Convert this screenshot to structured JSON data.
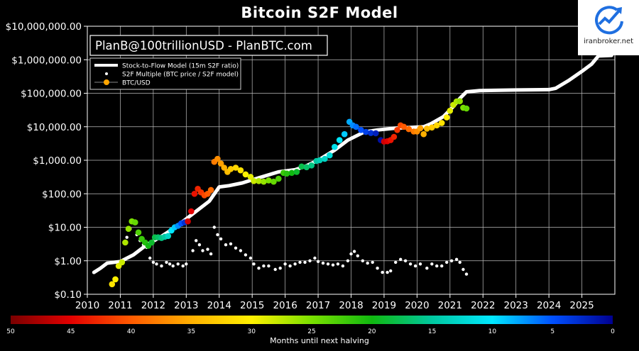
{
  "watermark": {
    "text": "iranbroker.net"
  },
  "chart_data": {
    "type": "scatter",
    "title": "Bitcoin S2F Model",
    "annotation": "PlanB@100trillionUSD - PlanBTC.com",
    "y_scale": "log",
    "ylim": [
      0.1,
      10000000
    ],
    "xlim": [
      2010,
      2026
    ],
    "y_ticks": [
      "$0.10",
      "$1.00",
      "$10.00",
      "$100.00",
      "$1,000.00",
      "$10,000.00",
      "$100,000.00",
      "$1,000,000.00",
      "$10,000,000.00"
    ],
    "x_ticks": [
      "2010",
      "2011",
      "2012",
      "2013",
      "2014",
      "2015",
      "2016",
      "2017",
      "2018",
      "2019",
      "2020",
      "2021",
      "2022",
      "2023",
      "2024",
      "2025"
    ],
    "grid": true,
    "background": "#000000",
    "legend": {
      "placement": "top-left",
      "entries": [
        "Stock-to-Flow Model (15m S2F ratio)",
        "S2F Multiple (BTC price / S2F model)",
        "BTC/USD"
      ]
    },
    "colorbar": {
      "label": "Months until next halving",
      "ticks": [
        "50",
        "45",
        "40",
        "35",
        "30",
        "25",
        "20",
        "15",
        "10",
        "5",
        "0"
      ],
      "range": [
        50,
        0
      ],
      "colors": [
        "#7a0000",
        "#e30000",
        "#ff5a00",
        "#ffb000",
        "#fff000",
        "#7ae000",
        "#10b810",
        "#00c8a0",
        "#00e8ff",
        "#0050ff",
        "#000090"
      ]
    },
    "series": [
      {
        "name": "Stock-to-Flow Model (15m S2F ratio)",
        "kind": "line",
        "color": "#ffffff",
        "points": [
          [
            2010.2,
            0.45
          ],
          [
            2010.4,
            0.6
          ],
          [
            2010.6,
            0.85
          ],
          [
            2011.0,
            0.95
          ],
          [
            2011.4,
            1.5
          ],
          [
            2011.8,
            3.0
          ],
          [
            2012.2,
            5.0
          ],
          [
            2012.6,
            9.0
          ],
          [
            2012.9,
            15
          ],
          [
            2013.3,
            30
          ],
          [
            2013.7,
            60
          ],
          [
            2014.0,
            160
          ],
          [
            2014.3,
            175
          ],
          [
            2014.7,
            210
          ],
          [
            2015.2,
            300
          ],
          [
            2015.8,
            450
          ],
          [
            2016.3,
            520
          ],
          [
            2016.6,
            650
          ],
          [
            2017.0,
            1000
          ],
          [
            2017.5,
            2000
          ],
          [
            2017.9,
            4000
          ],
          [
            2018.4,
            7000
          ],
          [
            2018.8,
            8000
          ],
          [
            2019.3,
            9000
          ],
          [
            2019.8,
            9500
          ],
          [
            2020.2,
            10000
          ],
          [
            2020.4,
            12000
          ],
          [
            2020.8,
            20000
          ],
          [
            2021.1,
            40000
          ],
          [
            2021.3,
            70000
          ],
          [
            2021.5,
            110000
          ],
          [
            2021.9,
            120000
          ],
          [
            2023.0,
            125000
          ],
          [
            2024.0,
            128000
          ],
          [
            2024.2,
            140000
          ],
          [
            2024.6,
            240000
          ],
          [
            2025.0,
            450000
          ],
          [
            2025.3,
            750000
          ],
          [
            2025.5,
            1300000
          ],
          [
            2025.9,
            1350000
          ]
        ]
      },
      {
        "name": "S2F Multiple (BTC price / S2F model)",
        "kind": "scatter",
        "color": "#ffffff",
        "points": [
          [
            2011.2,
            5
          ],
          [
            2011.3,
            9
          ],
          [
            2011.5,
            6
          ],
          [
            2011.6,
            4
          ],
          [
            2011.7,
            3
          ],
          [
            2011.8,
            2.5
          ],
          [
            2011.9,
            1.2
          ],
          [
            2012.0,
            0.9
          ],
          [
            2012.1,
            0.8
          ],
          [
            2012.25,
            0.7
          ],
          [
            2012.4,
            0.9
          ],
          [
            2012.5,
            0.8
          ],
          [
            2012.6,
            0.7
          ],
          [
            2012.75,
            0.8
          ],
          [
            2012.9,
            0.7
          ],
          [
            2013.0,
            0.8
          ],
          [
            2013.2,
            2
          ],
          [
            2013.3,
            4
          ],
          [
            2013.4,
            3
          ],
          [
            2013.5,
            2
          ],
          [
            2013.65,
            2.2
          ],
          [
            2013.75,
            1.6
          ],
          [
            2013.85,
            10
          ],
          [
            2013.95,
            6
          ],
          [
            2014.05,
            4.5
          ],
          [
            2014.2,
            3
          ],
          [
            2014.35,
            3.2
          ],
          [
            2014.5,
            2.4
          ],
          [
            2014.65,
            2
          ],
          [
            2014.8,
            1.5
          ],
          [
            2014.95,
            1.2
          ],
          [
            2015.05,
            0.8
          ],
          [
            2015.2,
            0.6
          ],
          [
            2015.35,
            0.7
          ],
          [
            2015.5,
            0.7
          ],
          [
            2015.7,
            0.55
          ],
          [
            2015.85,
            0.6
          ],
          [
            2016.0,
            0.8
          ],
          [
            2016.15,
            0.7
          ],
          [
            2016.3,
            0.8
          ],
          [
            2016.45,
            0.9
          ],
          [
            2016.6,
            0.9
          ],
          [
            2016.75,
            1.0
          ],
          [
            2016.9,
            1.2
          ],
          [
            2017.0,
            0.95
          ],
          [
            2017.15,
            0.85
          ],
          [
            2017.3,
            0.8
          ],
          [
            2017.45,
            0.75
          ],
          [
            2017.6,
            0.8
          ],
          [
            2017.75,
            0.7
          ],
          [
            2017.9,
            1.0
          ],
          [
            2018.0,
            1.6
          ],
          [
            2018.1,
            1.9
          ],
          [
            2018.2,
            1.4
          ],
          [
            2018.35,
            1.0
          ],
          [
            2018.5,
            0.85
          ],
          [
            2018.65,
            0.9
          ],
          [
            2018.8,
            0.6
          ],
          [
            2018.95,
            0.45
          ],
          [
            2019.1,
            0.45
          ],
          [
            2019.2,
            0.5
          ],
          [
            2019.35,
            0.9
          ],
          [
            2019.5,
            1.1
          ],
          [
            2019.65,
            1.0
          ],
          [
            2019.8,
            0.8
          ],
          [
            2019.95,
            0.7
          ],
          [
            2020.1,
            0.8
          ],
          [
            2020.3,
            0.6
          ],
          [
            2020.45,
            0.8
          ],
          [
            2020.6,
            0.7
          ],
          [
            2020.75,
            0.7
          ],
          [
            2020.9,
            0.9
          ],
          [
            2021.05,
            1.0
          ],
          [
            2021.2,
            1.1
          ],
          [
            2021.3,
            0.9
          ],
          [
            2021.4,
            0.55
          ],
          [
            2021.5,
            0.4
          ]
        ]
      },
      {
        "name": "BTC/USD",
        "kind": "scatter",
        "color_by": "months_until_next_halving",
        "points": [
          [
            2010.75,
            0.2,
            31
          ],
          [
            2010.85,
            0.28,
            30
          ],
          [
            2010.95,
            0.7,
            29
          ],
          [
            2011.05,
            0.9,
            28
          ],
          [
            2011.15,
            3.5,
            27
          ],
          [
            2011.25,
            9,
            26
          ],
          [
            2011.35,
            15,
            25
          ],
          [
            2011.45,
            14,
            24
          ],
          [
            2011.55,
            7,
            23
          ],
          [
            2011.65,
            4.5,
            22
          ],
          [
            2011.75,
            3.5,
            21
          ],
          [
            2011.85,
            2.8,
            20
          ],
          [
            2011.95,
            3.5,
            19
          ],
          [
            2012.05,
            5,
            18
          ],
          [
            2012.15,
            5,
            17
          ],
          [
            2012.25,
            4.8,
            16
          ],
          [
            2012.35,
            5.2,
            15
          ],
          [
            2012.45,
            5.5,
            13
          ],
          [
            2012.55,
            8,
            10
          ],
          [
            2012.65,
            10,
            9
          ],
          [
            2012.75,
            11,
            7
          ],
          [
            2012.85,
            13,
            5
          ],
          [
            2012.95,
            14,
            3
          ],
          [
            2013.05,
            15,
            46
          ],
          [
            2013.15,
            30,
            45
          ],
          [
            2013.25,
            100,
            44
          ],
          [
            2013.35,
            140,
            43
          ],
          [
            2013.45,
            110,
            42
          ],
          [
            2013.55,
            90,
            41
          ],
          [
            2013.65,
            100,
            40
          ],
          [
            2013.75,
            130,
            39
          ],
          [
            2013.85,
            900,
            38
          ],
          [
            2013.95,
            1100,
            37
          ],
          [
            2014.05,
            800,
            36
          ],
          [
            2014.15,
            600,
            35
          ],
          [
            2014.25,
            450,
            34
          ],
          [
            2014.35,
            550,
            33
          ],
          [
            2014.5,
            600,
            32
          ],
          [
            2014.65,
            500,
            31
          ],
          [
            2014.8,
            380,
            30
          ],
          [
            2014.95,
            320,
            29
          ],
          [
            2015.05,
            240,
            28
          ],
          [
            2015.2,
            240,
            27
          ],
          [
            2015.35,
            230,
            26
          ],
          [
            2015.5,
            250,
            25
          ],
          [
            2015.65,
            230,
            24
          ],
          [
            2015.8,
            280,
            23
          ],
          [
            2015.95,
            420,
            22
          ],
          [
            2016.05,
            400,
            21
          ],
          [
            2016.2,
            420,
            20
          ],
          [
            2016.35,
            450,
            19
          ],
          [
            2016.5,
            650,
            18
          ],
          [
            2016.65,
            620,
            17
          ],
          [
            2016.8,
            700,
            16
          ],
          [
            2016.95,
            950,
            15
          ],
          [
            2017.05,
            1000,
            14
          ],
          [
            2017.2,
            1100,
            13
          ],
          [
            2017.35,
            1400,
            12
          ],
          [
            2017.5,
            2500,
            11
          ],
          [
            2017.65,
            4000,
            10
          ],
          [
            2017.8,
            6000,
            9
          ],
          [
            2017.95,
            14000,
            8
          ],
          [
            2018.05,
            11000,
            7
          ],
          [
            2018.15,
            10000,
            6
          ],
          [
            2018.3,
            8000,
            5
          ],
          [
            2018.45,
            7000,
            4
          ],
          [
            2018.6,
            6500,
            3
          ],
          [
            2018.75,
            6400,
            2
          ],
          [
            2018.9,
            4000,
            1
          ],
          [
            2019.0,
            3600,
            46
          ],
          [
            2019.1,
            3700,
            45
          ],
          [
            2019.2,
            4000,
            44
          ],
          [
            2019.3,
            5000,
            43
          ],
          [
            2019.4,
            8000,
            42
          ],
          [
            2019.5,
            11000,
            41
          ],
          [
            2019.6,
            10000,
            40
          ],
          [
            2019.75,
            8500,
            39
          ],
          [
            2019.9,
            7200,
            38
          ],
          [
            2020.0,
            7200,
            37
          ],
          [
            2020.1,
            9000,
            36
          ],
          [
            2020.2,
            6000,
            35
          ],
          [
            2020.3,
            8800,
            34
          ],
          [
            2020.45,
            9500,
            33
          ],
          [
            2020.6,
            11000,
            32
          ],
          [
            2020.75,
            13000,
            31
          ],
          [
            2020.9,
            19000,
            30
          ],
          [
            2021.0,
            30000,
            29
          ],
          [
            2021.1,
            45000,
            28
          ],
          [
            2021.2,
            57000,
            27
          ],
          [
            2021.3,
            58000,
            26
          ],
          [
            2021.4,
            37000,
            25
          ],
          [
            2021.5,
            35000,
            24
          ]
        ]
      }
    ]
  }
}
